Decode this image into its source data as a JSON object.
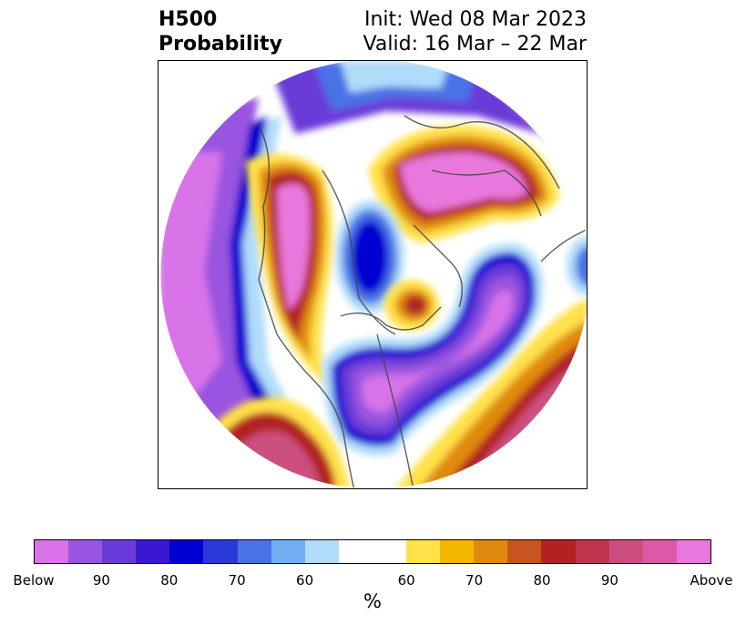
{
  "title": {
    "left_line1": "H500",
    "left_line2": "Probability",
    "right_line1": "Init: Wed 08 Mar 2023",
    "right_line2": "Valid: 16 Mar – 22 Mar"
  },
  "colorbar": {
    "label": "%",
    "tick_labels": [
      "Below",
      "90",
      "80",
      "70",
      "60",
      "60",
      "70",
      "80",
      "90",
      "Above"
    ],
    "colors": [
      "#d873e8",
      "#9a55e0",
      "#6a3ad8",
      "#3a18d2",
      "#0000d0",
      "#2a3ad8",
      "#4a72e6",
      "#72aef2",
      "#b0dcfa",
      "#ffffff",
      "#ffe14a",
      "#f5b800",
      "#e08a10",
      "#c65520",
      "#b22222",
      "#c0354e",
      "#cc4f80",
      "#da5aa8",
      "#e878dc"
    ]
  },
  "colors": {
    "below_high": "#d873e8",
    "below_mid": "#6a3ad8",
    "below_low": "#0000d0",
    "neutral": "#ffffff",
    "above_low": "#ffe14a",
    "above_mid": "#b22222",
    "above_high": "#e878dc"
  }
}
